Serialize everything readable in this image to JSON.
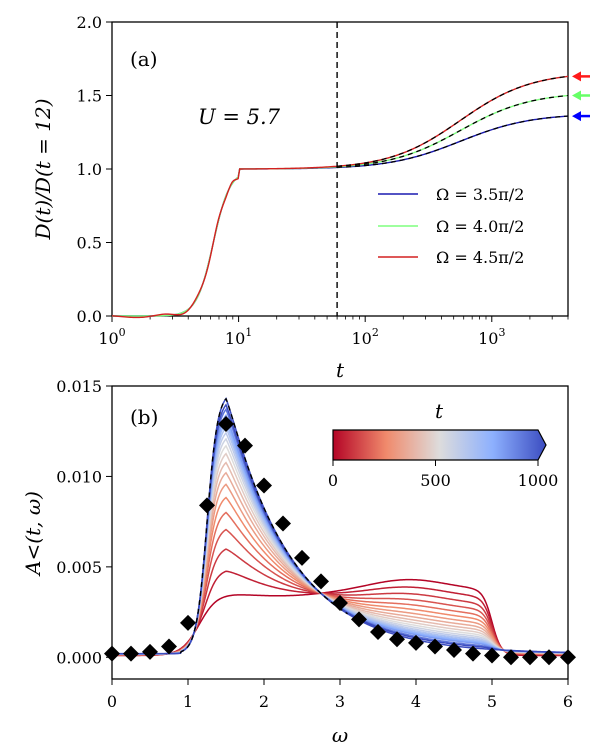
{
  "chart_data": [
    {
      "type": "line",
      "panel_label": "(a)",
      "xlabel": "t",
      "ylabel": "D(t)/D(t = 12)",
      "xscale": "log",
      "xlim": [
        1,
        4000
      ],
      "ylim": [
        0.0,
        2.0
      ],
      "xticks": [
        1,
        10,
        100,
        1000
      ],
      "xtick_labels": [
        "10^0",
        "10^1",
        "10^2",
        "10^3"
      ],
      "yticks": [
        0.0,
        0.5,
        1.0,
        1.5,
        2.0
      ],
      "ytick_labels": [
        "0.0",
        "0.5",
        "1.0",
        "1.5",
        "2.0"
      ],
      "annotation": "U = 5.7",
      "vline_x": 60,
      "legend_position": "right",
      "series": [
        {
          "name": "Ω = 3.5π/2",
          "color": "#1a1ab0",
          "arrow_color": "#0000ff",
          "final": 1.36
        },
        {
          "name": "Ω = 4.0π/2",
          "color": "#7fff7f",
          "arrow_color": "#66ff66",
          "final": 1.5
        },
        {
          "name": "Ω = 4.5π/2",
          "color": "#d42020",
          "arrow_color": "#ff1a1a",
          "final": 1.63
        }
      ]
    },
    {
      "type": "line",
      "panel_label": "(b)",
      "xlabel": "ω",
      "ylabel": "A<(t, ω)",
      "xlim": [
        0,
        6
      ],
      "ylim": [
        -0.0012,
        0.015
      ],
      "xticks": [
        0,
        1,
        2,
        3,
        4,
        5,
        6
      ],
      "xtick_labels": [
        "0",
        "1",
        "2",
        "3",
        "4",
        "5",
        "6"
      ],
      "yticks": [
        0.0,
        0.005,
        0.01,
        0.015
      ],
      "ytick_labels": [
        "0.000",
        "0.005",
        "0.010",
        "0.015"
      ],
      "colorbar": {
        "label": "t",
        "min": 0,
        "max": 1000,
        "ticks": [
          0,
          500,
          1000
        ],
        "tick_labels": [
          "0",
          "500",
          "1000"
        ],
        "colormap": "coolwarm_reversed",
        "extend": "max"
      },
      "curve_times": [
        0,
        50,
        100,
        150,
        200,
        250,
        300,
        350,
        400,
        450,
        500,
        550,
        600,
        650,
        700,
        750,
        800,
        900,
        1000,
        1200
      ],
      "markers": {
        "shape": "diamond",
        "x": [
          0.0,
          0.25,
          0.5,
          0.75,
          1.0,
          1.25,
          1.5,
          1.75,
          2.0,
          2.25,
          2.5,
          2.75,
          3.0,
          3.25,
          3.5,
          3.75,
          4.0,
          4.25,
          4.5,
          4.75,
          5.0,
          5.25,
          5.5,
          5.75,
          6.0
        ],
        "y": [
          0.0002,
          0.0002,
          0.0003,
          0.0006,
          0.0019,
          0.0084,
          0.0129,
          0.0117,
          0.0095,
          0.0074,
          0.0055,
          0.0042,
          0.003,
          0.0021,
          0.0014,
          0.001,
          0.0008,
          0.0006,
          0.0004,
          0.0002,
          0.0001,
          0.0,
          0.0,
          0.0,
          0.0
        ]
      }
    }
  ]
}
